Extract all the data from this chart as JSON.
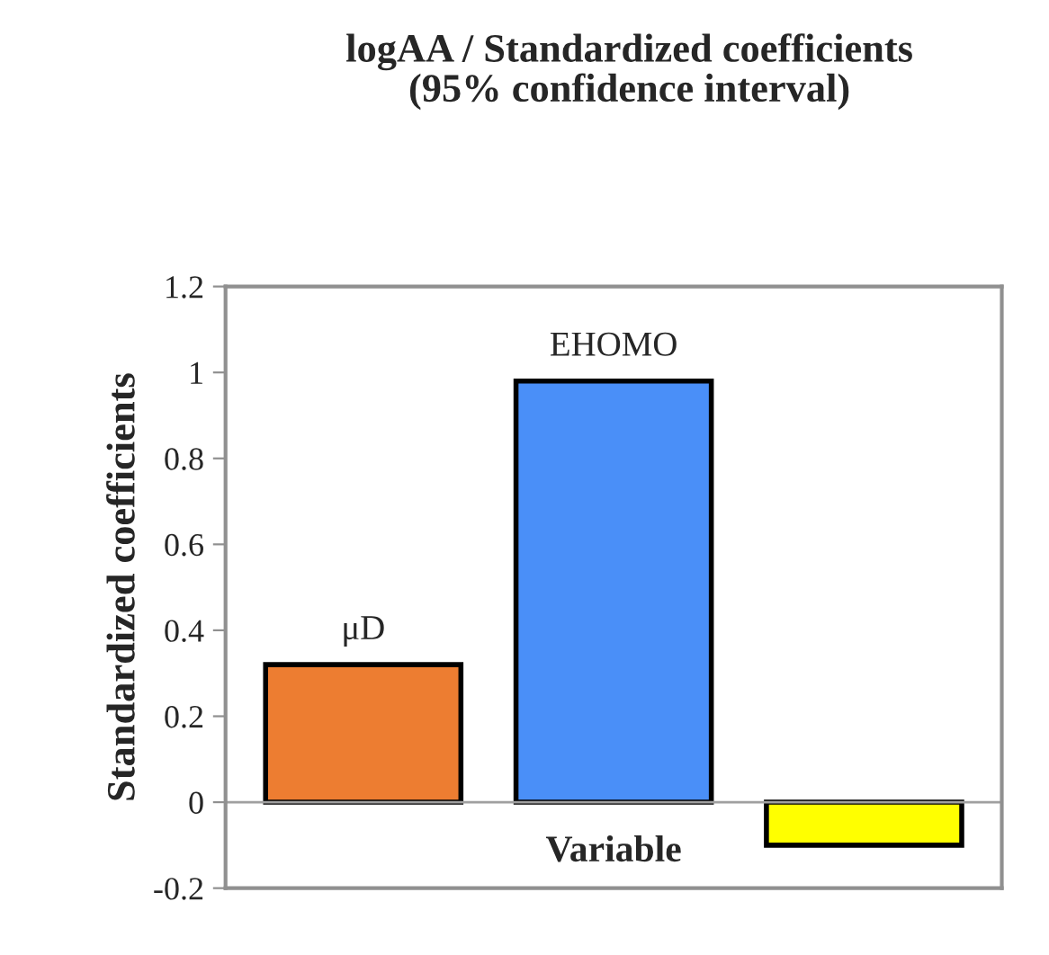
{
  "chart_data": {
    "type": "bar",
    "title": "logAA / Standardized coefficients\n(95% confidence interval)",
    "xlabel": "Variable",
    "ylabel": "Standardized coefficients",
    "categories": [
      "μD",
      "EHOMO",
      null
    ],
    "values": [
      0.32,
      0.98,
      -0.1
    ],
    "colors": [
      "#ed7d31",
      "#4a8ff8",
      "#ffff00"
    ],
    "ylim": [
      -0.2,
      1.2
    ],
    "yticks": [
      -0.2,
      0,
      0.2,
      0.4,
      0.6,
      0.8,
      1,
      1.2
    ]
  }
}
